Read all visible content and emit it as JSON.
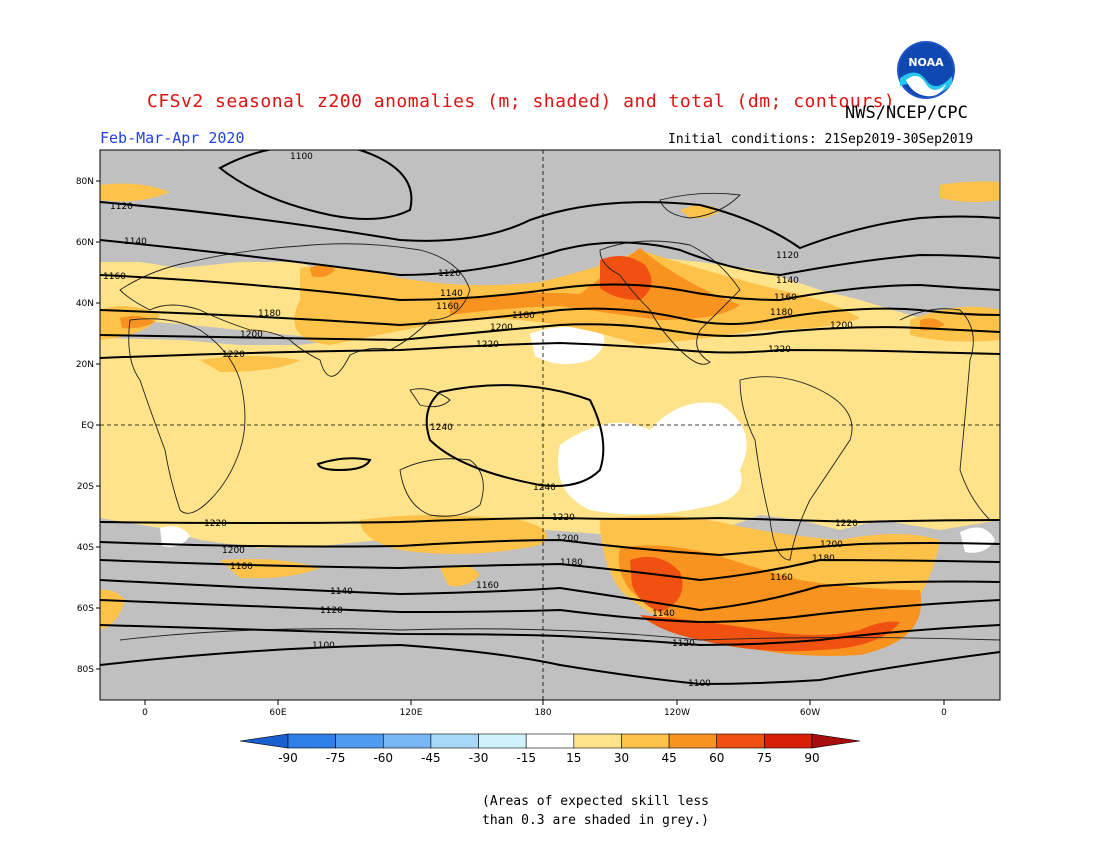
{
  "header": {
    "title": "CFSv2 seasonal z200 anomalies (m; shaded) and total (dm; contours)",
    "agency": "NWS/NCEP/CPC",
    "period": "Feb-Mar-Apr 2020",
    "initial_conditions": "Initial conditions: 21Sep2019-30Sep2019",
    "logo_text": "NOAA"
  },
  "map": {
    "lat_labels": [
      "80N",
      "60N",
      "40N",
      "20N",
      "EQ",
      "20S",
      "40S",
      "60S",
      "80S"
    ],
    "lon_labels": [
      "0",
      "60E",
      "120E",
      "180",
      "120W",
      "60W",
      "0"
    ],
    "contour_labels": [
      "1100",
      "1120",
      "1140",
      "1160",
      "1180",
      "1200",
      "1220",
      "1240"
    ],
    "colors": {
      "land_outline": "#222222",
      "grey_low_skill": "#c0c0c0",
      "background": "#ffe38a"
    }
  },
  "colorbar": {
    "labels": [
      "-90",
      "-75",
      "-60",
      "-45",
      "-30",
      "-15",
      "15",
      "30",
      "45",
      "60",
      "75",
      "90"
    ],
    "colors": [
      "#1a5fcf",
      "#2f7fe8",
      "#4f9bf0",
      "#78b8f5",
      "#a8d8f8",
      "#d0f2fa",
      "#ffffff",
      "#ffe38a",
      "#fdc24a",
      "#f7931e",
      "#f05010",
      "#d81e05",
      "#a80d0d"
    ]
  },
  "note": {
    "line1": "(Areas of expected skill less",
    "line2": "than 0.3 are shaded in grey.)"
  }
}
